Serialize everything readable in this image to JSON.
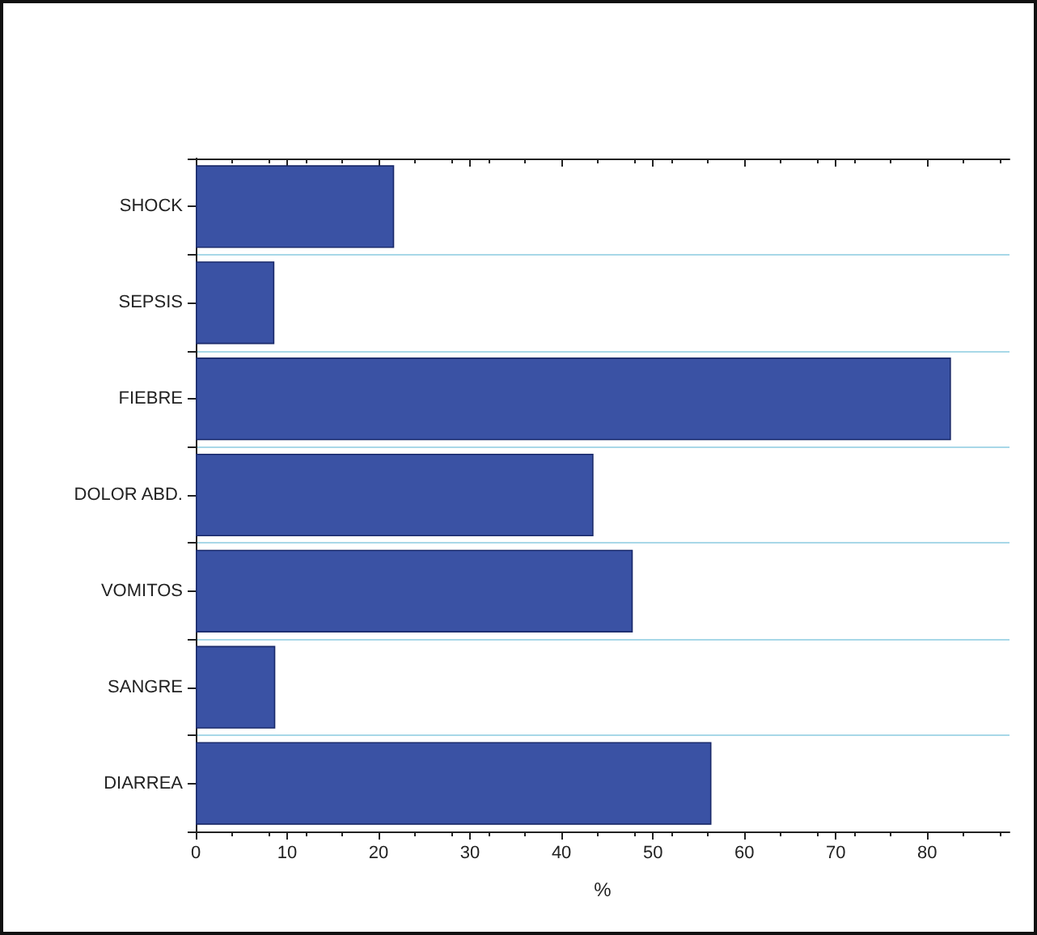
{
  "chart_data": {
    "type": "bar",
    "orientation": "horizontal",
    "xlabel": "%",
    "categories": [
      "SHOCK",
      "SEPSIS",
      "FIEBRE",
      "DOLOR ABD.",
      "VOMITOS",
      "SANGRE",
      "DIARREA"
    ],
    "values": [
      21.7,
      8.6,
      82.6,
      43.5,
      47.8,
      8.7,
      56.4
    ],
    "color": "#3a52a4",
    "xlim": [
      0,
      89
    ],
    "xticks": [
      0,
      10,
      20,
      30,
      40,
      50,
      60,
      70,
      80
    ],
    "grid": "y"
  }
}
